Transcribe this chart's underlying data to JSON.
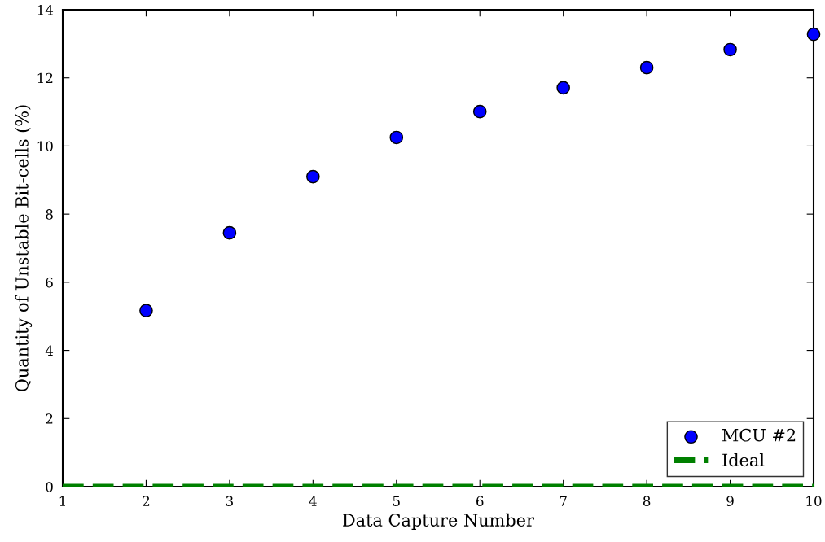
{
  "chart_data": {
    "type": "scatter",
    "xlabel": "Data Capture Number",
    "ylabel": "Quantity of Unstable Bit-cells (%)",
    "x": [
      1,
      2,
      3,
      4,
      5,
      6,
      7,
      8,
      9,
      10
    ],
    "series": [
      {
        "name": "MCU #2",
        "color": "#0000ff",
        "marker": "circle",
        "values": [
          null,
          5.17,
          7.45,
          9.1,
          10.25,
          11.01,
          11.71,
          12.3,
          12.83,
          13.28
        ]
      },
      {
        "name": "Ideal",
        "type": "line",
        "color": "#008000",
        "line_style": "dashed",
        "marker": "none",
        "values": [
          0,
          0,
          0,
          0,
          0,
          0,
          0,
          0,
          0,
          0
        ]
      }
    ],
    "xlim": [
      1,
      10
    ],
    "xticks": [
      1,
      2,
      3,
      4,
      5,
      6,
      7,
      8,
      9,
      10
    ],
    "ylim": [
      0,
      14
    ],
    "yticks": [
      0,
      2,
      4,
      6,
      8,
      10,
      12,
      14
    ],
    "grid": false,
    "legend": "bottom right"
  }
}
